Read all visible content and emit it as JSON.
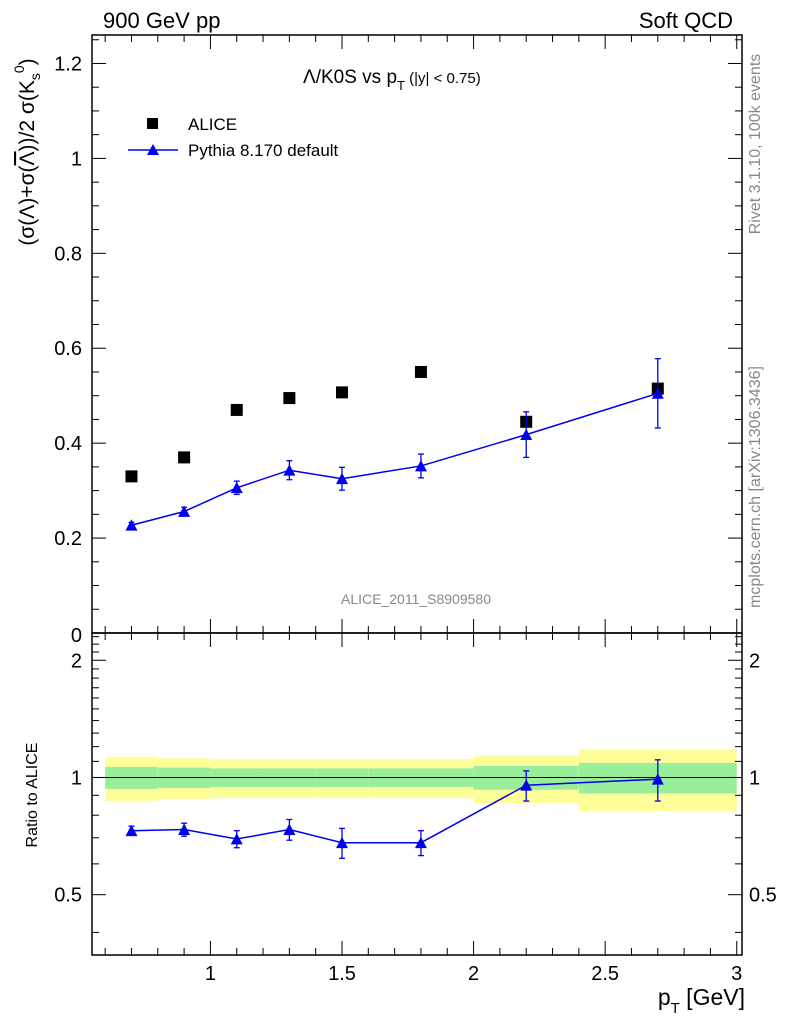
{
  "header": {
    "left": "900 GeV pp",
    "right": "Soft QCD"
  },
  "side_text": {
    "rivet": "Rivet 3.1.10,  100k events",
    "mcplots": "mcplots.cern.ch [arXiv:1306.3436]"
  },
  "chart_data": [
    {
      "type": "scatter",
      "title": "Λ/K0S vs p_T (|y| < 0.75)",
      "ylabel": "(σ(Λ)+σ(Λ̄))/2 σ(K0s)",
      "xlim": [
        0.55,
        3.02
      ],
      "ylim": [
        0,
        1.26
      ],
      "y_ticks": [
        "0.2",
        "0.4",
        "0.6",
        "0.8",
        "1",
        "1.2"
      ],
      "y_bottom_label": "0",
      "watermark": "ALICE_2011_S8909580",
      "legend_position": "top-left",
      "series": [
        {
          "name": "ALICE",
          "color": "#000000",
          "marker": "square",
          "x": [
            0.7,
            0.9,
            1.1,
            1.3,
            1.5,
            1.8,
            2.2,
            2.7
          ],
          "y": [
            0.33,
            0.37,
            0.47,
            0.495,
            0.507,
            0.55,
            0.445,
            0.515
          ]
        },
        {
          "name": "Pythia 8.170 default",
          "color": "#0000ee",
          "marker": "triangle",
          "x": [
            0.7,
            0.9,
            1.1,
            1.3,
            1.5,
            1.8,
            2.2,
            2.7
          ],
          "y": [
            0.227,
            0.256,
            0.306,
            0.343,
            0.325,
            0.352,
            0.418,
            0.505
          ],
          "yerr": [
            0.006,
            0.009,
            0.014,
            0.02,
            0.024,
            0.025,
            0.048,
            0.073
          ]
        }
      ]
    },
    {
      "type": "scatter",
      "ylabel": "Ratio to ALICE",
      "xlabel": "p_T [GeV]",
      "xlim": [
        0.55,
        3.02
      ],
      "ylim": [
        0.35,
        2.35
      ],
      "x_ticks": [
        "1",
        "1.5",
        "2",
        "2.5",
        "3"
      ],
      "y_ticks": [
        "0.5",
        "1",
        "2"
      ],
      "reference_line": 1,
      "uncertainty_bands": [
        {
          "x_low": 0.6,
          "x_high": 0.8,
          "inner": [
            0.935,
            1.065
          ],
          "outer": [
            0.87,
            1.13
          ]
        },
        {
          "x_low": 0.8,
          "x_high": 1.0,
          "inner": [
            0.94,
            1.06
          ],
          "outer": [
            0.88,
            1.12
          ]
        },
        {
          "x_low": 1.0,
          "x_high": 1.2,
          "inner": [
            0.945,
            1.055
          ],
          "outer": [
            0.885,
            1.115
          ]
        },
        {
          "x_low": 1.2,
          "x_high": 1.4,
          "inner": [
            0.945,
            1.055
          ],
          "outer": [
            0.885,
            1.115
          ]
        },
        {
          "x_low": 1.4,
          "x_high": 1.6,
          "inner": [
            0.945,
            1.055
          ],
          "outer": [
            0.885,
            1.115
          ]
        },
        {
          "x_low": 1.6,
          "x_high": 2.0,
          "inner": [
            0.945,
            1.055
          ],
          "outer": [
            0.885,
            1.115
          ]
        },
        {
          "x_low": 2.0,
          "x_high": 2.4,
          "inner": [
            0.93,
            1.07
          ],
          "outer": [
            0.86,
            1.14
          ]
        },
        {
          "x_low": 2.4,
          "x_high": 3.0,
          "inner": [
            0.91,
            1.09
          ],
          "outer": [
            0.82,
            1.18
          ]
        }
      ],
      "series": [
        {
          "name": "Pythia 8.170 default",
          "color": "#0000ee",
          "marker": "triangle",
          "x": [
            0.7,
            0.9,
            1.1,
            1.3,
            1.5,
            1.8,
            2.2,
            2.7
          ],
          "y": [
            0.73,
            0.735,
            0.695,
            0.735,
            0.68,
            0.68,
            0.955,
            0.99
          ],
          "yerr": [
            0.02,
            0.028,
            0.035,
            0.045,
            0.06,
            0.05,
            0.085,
            0.12
          ]
        }
      ]
    }
  ],
  "colors": {
    "band_inner": "#99ee99",
    "band_outer": "#ffff99",
    "side_text": "#888888"
  }
}
